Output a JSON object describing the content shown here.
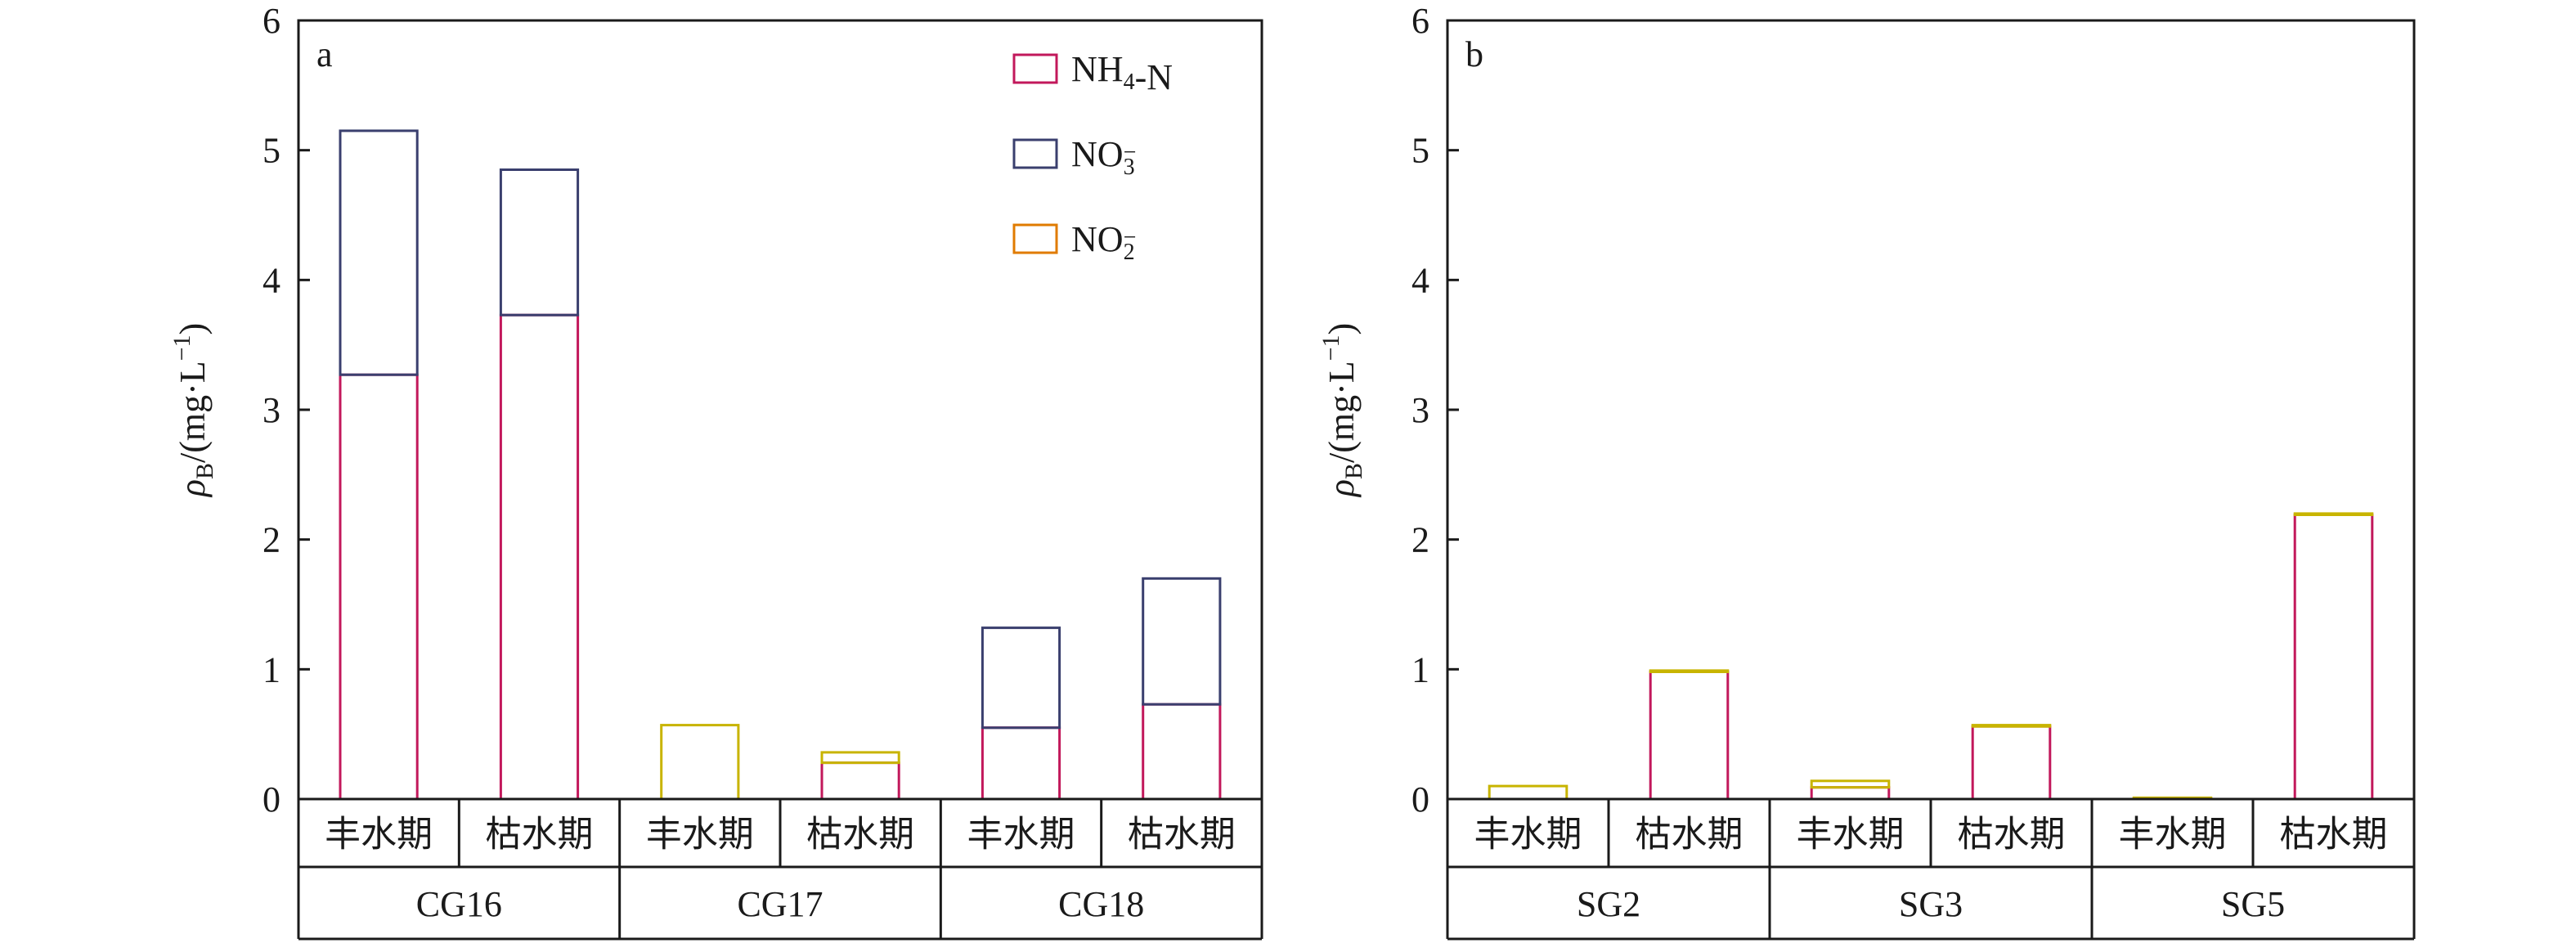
{
  "colors": {
    "NH4": "#c2185b",
    "NO3": "#3a3f6e",
    "NO2": "#c8b400",
    "NO2_edge": "#e07b00",
    "frame": "#1a1a1a"
  },
  "chart_data": [
    {
      "type": "bar",
      "stacked": true,
      "panel_label": "a",
      "ylabel_main": "ρ",
      "ylabel_sub": "B",
      "ylabel_rest": "/(mg·L",
      "ylabel_sup": "−1",
      "ylabel_close": ")",
      "ylim": [
        0,
        6
      ],
      "yticks": [
        "0",
        "1",
        "2",
        "3",
        "4",
        "5",
        "6"
      ],
      "sites": [
        "CG16",
        "CG17",
        "CG18"
      ],
      "categories": [
        "丰水期",
        "枯水期",
        "丰水期",
        "枯水期",
        "丰水期",
        "枯水期"
      ],
      "legend": {
        "position": "top-right",
        "items": [
          {
            "key": "NH4",
            "label": "NH",
            "sub": "4",
            "suffix": "-N",
            "sup": ""
          },
          {
            "key": "NO3",
            "label": "NO",
            "sub": "3",
            "suffix": "",
            "sup": "−"
          },
          {
            "key": "NO2",
            "label": "NO",
            "sub": "2",
            "suffix": "",
            "sup": "−"
          }
        ]
      },
      "series": [
        {
          "key": "NH4",
          "values": [
            3.27,
            3.73,
            0.0,
            0.28,
            0.55,
            0.73
          ]
        },
        {
          "key": "NO3",
          "values": [
            1.88,
            1.12,
            0.0,
            0.0,
            0.77,
            0.97
          ]
        },
        {
          "key": "NO2",
          "values": [
            0.0,
            0.0,
            0.57,
            0.08,
            0.0,
            0.0
          ]
        }
      ]
    },
    {
      "type": "bar",
      "stacked": true,
      "panel_label": "b",
      "ylabel_main": "ρ",
      "ylabel_sub": "B",
      "ylabel_rest": "/(mg·L",
      "ylabel_sup": "−1",
      "ylabel_close": ")",
      "ylim": [
        0,
        6
      ],
      "yticks": [
        "0",
        "1",
        "2",
        "3",
        "4",
        "5",
        "6"
      ],
      "sites": [
        "SG2",
        "SG3",
        "SG5"
      ],
      "categories": [
        "丰水期",
        "枯水期",
        "丰水期",
        "枯水期",
        "丰水期",
        "枯水期"
      ],
      "series": [
        {
          "key": "NH4",
          "values": [
            0.0,
            0.98,
            0.09,
            0.56,
            0.0,
            2.19
          ]
        },
        {
          "key": "NO3",
          "values": [
            0.0,
            0.0,
            0.0,
            0.0,
            0.0,
            0.0
          ]
        },
        {
          "key": "NO2",
          "values": [
            0.1,
            0.01,
            0.05,
            0.01,
            0.01,
            0.01
          ]
        }
      ]
    }
  ]
}
